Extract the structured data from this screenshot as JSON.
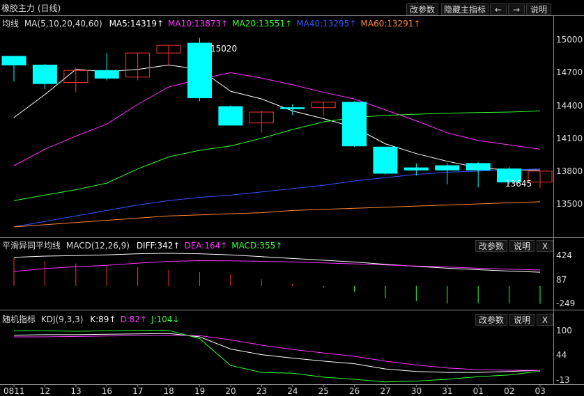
{
  "window": {
    "title": "橡胶主力 (日线)",
    "buttons": [
      "改参数",
      "隐藏主指标",
      "←",
      "→",
      "说明"
    ]
  },
  "ma_panel": {
    "label": "均线",
    "params": "MA(5,10,20,40,60)",
    "indicators": [
      {
        "text": "MA5:14319↑",
        "color": "#ffffff"
      },
      {
        "text": "MA10:13873↑",
        "color": "#ff33ff"
      },
      {
        "text": "MA20:13551↑",
        "color": "#33ff33"
      },
      {
        "text": "MA40:13295↑",
        "color": "#3355ff"
      },
      {
        "text": "MA60:13291↑",
        "color": "#ff8833"
      }
    ],
    "y_ticks": [
      "15000",
      "14700",
      "14400",
      "14100",
      "13800",
      "13500"
    ],
    "annotations": {
      "high": "15020",
      "low": "13645"
    }
  },
  "macd_panel": {
    "label": "平滑异同平均线",
    "params": "MACD(12,26,9)",
    "indicators": [
      {
        "text": "DIFF:342↑",
        "color": "#ffffff"
      },
      {
        "text": "DEA:164↑",
        "color": "#ff33ff"
      },
      {
        "text": "MACD:355↑",
        "color": "#33ff33"
      }
    ],
    "buttons": [
      "改参数",
      "说明",
      "X"
    ],
    "y_ticks": [
      "424",
      "87",
      "-249"
    ]
  },
  "kdj_panel": {
    "label": "随机指标",
    "params": "KDJ(9,3,3)",
    "indicators": [
      {
        "text": "K:89↑",
        "color": "#ffffff"
      },
      {
        "text": "D:82↑",
        "color": "#ff33ff"
      },
      {
        "text": "J:104↓",
        "color": "#33ff33"
      }
    ],
    "buttons": [
      "改参数",
      "说明",
      "X"
    ],
    "y_ticks": [
      "100",
      "44",
      "-13"
    ]
  },
  "x_axis": {
    "labels": [
      "0811",
      "12",
      "13",
      "16",
      "17",
      "18",
      "19",
      "20",
      "23",
      "24",
      "25",
      "26",
      "27",
      "30",
      "31",
      "01",
      "02",
      "03"
    ]
  },
  "chart_data": {
    "type": "candlestick",
    "categories": [
      "0811",
      "12",
      "13",
      "16",
      "17",
      "18",
      "19",
      "20",
      "23",
      "24",
      "25",
      "26",
      "27",
      "30",
      "31",
      "01",
      "02",
      "03"
    ],
    "ohlc": [
      {
        "open": 14850,
        "high": 14850,
        "low": 14620,
        "close": 14770
      },
      {
        "open": 14770,
        "high": 14780,
        "low": 14550,
        "close": 14600
      },
      {
        "open": 14610,
        "high": 14750,
        "low": 14520,
        "close": 14720
      },
      {
        "open": 14720,
        "high": 14880,
        "low": 14630,
        "close": 14650
      },
      {
        "open": 14660,
        "high": 14880,
        "low": 14630,
        "close": 14880
      },
      {
        "open": 14880,
        "high": 14950,
        "low": 14770,
        "close": 14950
      },
      {
        "open": 14970,
        "high": 15020,
        "low": 14440,
        "close": 14470
      },
      {
        "open": 14390,
        "high": 14400,
        "low": 14220,
        "close": 14220
      },
      {
        "open": 14240,
        "high": 14350,
        "low": 14150,
        "close": 14340
      },
      {
        "open": 14380,
        "high": 14410,
        "low": 14310,
        "close": 14370
      },
      {
        "open": 14380,
        "high": 14430,
        "low": 14300,
        "close": 14430
      },
      {
        "open": 14430,
        "high": 14440,
        "low": 14020,
        "close": 14030
      },
      {
        "open": 14020,
        "high": 14020,
        "low": 13770,
        "close": 13780
      },
      {
        "open": 13830,
        "high": 13870,
        "low": 13760,
        "close": 13810
      },
      {
        "open": 13850,
        "high": 13870,
        "low": 13680,
        "close": 13810
      },
      {
        "open": 13870,
        "high": 13880,
        "low": 13650,
        "close": 13810
      },
      {
        "open": 13820,
        "high": 13840,
        "low": 13680,
        "close": 13700
      },
      {
        "open": 13700,
        "high": 13800,
        "low": 13645,
        "close": 13800
      }
    ],
    "ma": [
      {
        "name": "MA5",
        "color": "#ffffff",
        "values": [
          14290,
          14500,
          14730,
          14710,
          14730,
          14770,
          14730,
          14530,
          14460,
          14350,
          14280,
          14200,
          14050,
          13960,
          13890,
          13830,
          13810,
          13810
        ]
      },
      {
        "name": "MA10",
        "color": "#ff33ff",
        "values": [
          13850,
          14000,
          14120,
          14230,
          14410,
          14570,
          14640,
          14700,
          14650,
          14590,
          14520,
          14460,
          14360,
          14260,
          14150,
          14080,
          14040,
          14000
        ]
      },
      {
        "name": "MA20",
        "color": "#33ff33",
        "values": [
          13530,
          13580,
          13630,
          13690,
          13820,
          13930,
          13990,
          14030,
          14100,
          14180,
          14250,
          14290,
          14310,
          14320,
          14330,
          14335,
          14340,
          14350
        ]
      },
      {
        "name": "MA40",
        "color": "#3355ff",
        "values": [
          13290,
          13340,
          13390,
          13440,
          13490,
          13530,
          13560,
          13580,
          13610,
          13640,
          13670,
          13710,
          13740,
          13770,
          13790,
          13800,
          13810,
          13820
        ]
      },
      {
        "name": "MA60",
        "color": "#ff8833",
        "values": [
          13290,
          13310,
          13330,
          13350,
          13370,
          13390,
          13400,
          13410,
          13420,
          13440,
          13450,
          13460,
          13470,
          13480,
          13490,
          13500,
          13510,
          13520
        ]
      }
    ],
    "ylim": [
      13290,
      15110
    ],
    "macd": {
      "ylim": [
        -300,
        470
      ],
      "diff": [
        395,
        412,
        420,
        430,
        445,
        452,
        445,
        430,
        405,
        380,
        355,
        330,
        300,
        270,
        245,
        225,
        205,
        190
      ],
      "dea": [
        200,
        240,
        265,
        285,
        315,
        340,
        350,
        348,
        340,
        332,
        318,
        305,
        290,
        275,
        262,
        245,
        232,
        220
      ],
      "macd": [
        390,
        345,
        310,
        290,
        260,
        225,
        190,
        160,
        90,
        30,
        -20,
        -80,
        -170,
        -210,
        -245,
        -240,
        -245,
        -249
      ]
    },
    "kdj": {
      "ylim": [
        -20,
        115
      ],
      "k": [
        90,
        91,
        91,
        92,
        93,
        94,
        86,
        58,
        45,
        37,
        30,
        24,
        12,
        6,
        4,
        4,
        6,
        9
      ],
      "d": [
        86,
        86,
        87,
        88,
        89,
        90,
        89,
        79,
        67,
        57,
        49,
        41,
        30,
        21,
        14,
        10,
        9,
        9
      ],
      "j": [
        100,
        100,
        99,
        100,
        101,
        101,
        82,
        20,
        4,
        2,
        -7,
        -12,
        -18,
        -16,
        -12,
        -6,
        -2,
        7
      ]
    }
  }
}
